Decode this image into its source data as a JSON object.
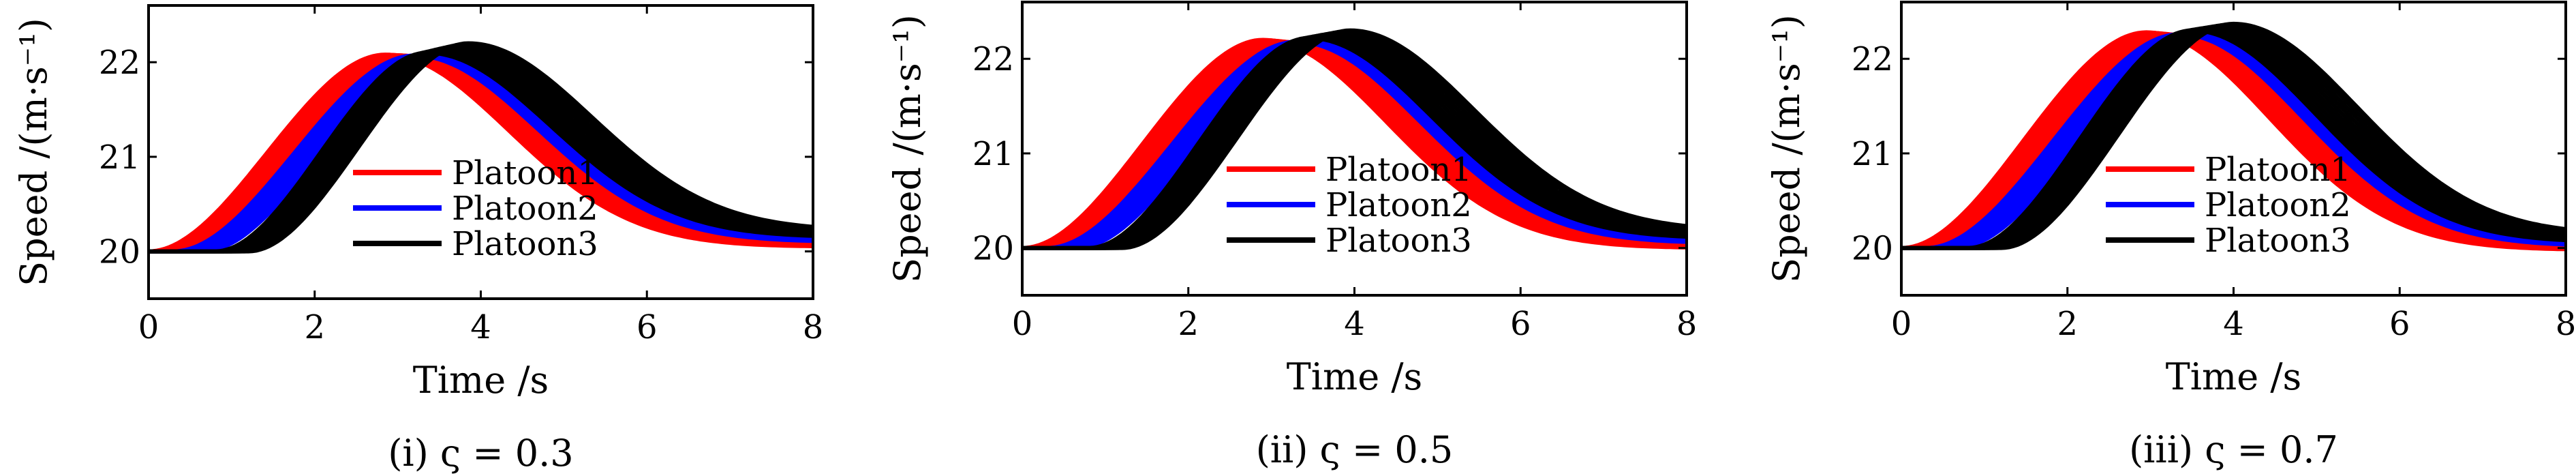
{
  "chart_data": [
    {
      "type": "line",
      "caption": "(i) ς = 0.3",
      "xlabel": "Time /s",
      "ylabel": "Speed /(m·s⁻¹)",
      "xlim": [
        0,
        8
      ],
      "ylim": [
        19.5,
        22.6
      ],
      "xticks": [
        "0",
        "2",
        "4",
        "6",
        "8"
      ],
      "yticks": [
        "20",
        "21",
        "22"
      ],
      "legend": {
        "position": "center",
        "entries": [
          "Platoon1",
          "Platoon2",
          "Platoon3"
        ]
      },
      "series": [
        {
          "name": "Platoon1",
          "color": "#ff0000",
          "vehicles": 10,
          "start_delay": [
            0.0,
            0.35
          ],
          "peak_time": [
            2.85,
            3.25
          ],
          "peak_speed": [
            22.08,
            22.06
          ],
          "end_speed": [
            20.05,
            20.1
          ]
        },
        {
          "name": "Platoon2",
          "color": "#0000ff",
          "vehicles": 10,
          "start_delay": [
            0.3,
            0.65
          ],
          "peak_time": [
            3.2,
            3.5
          ],
          "peak_speed": [
            22.07,
            22.1
          ],
          "end_speed": [
            20.1,
            20.13
          ]
        },
        {
          "name": "Platoon3",
          "color": "#000000",
          "vehicles": 10,
          "start_delay": [
            0.8,
            1.2
          ],
          "peak_time": [
            3.35,
            3.85
          ],
          "peak_speed": [
            22.1,
            22.2
          ],
          "end_speed": [
            20.15,
            20.22
          ]
        }
      ]
    },
    {
      "type": "line",
      "caption": "(ii) ς = 0.5",
      "xlabel": "Time /s",
      "ylabel": "Speed /(m·s⁻¹)",
      "xlim": [
        0,
        8
      ],
      "ylim": [
        19.5,
        22.6
      ],
      "xticks": [
        "0",
        "2",
        "4",
        "6",
        "8"
      ],
      "yticks": [
        "20",
        "21",
        "22"
      ],
      "legend": {
        "position": "center",
        "entries": [
          "Platoon1",
          "Platoon2",
          "Platoon3"
        ]
      },
      "series": [
        {
          "name": "Platoon1",
          "color": "#ff0000",
          "vehicles": 10,
          "start_delay": [
            0.0,
            0.35
          ],
          "peak_time": [
            2.9,
            3.35
          ],
          "peak_speed": [
            22.2,
            22.16
          ],
          "end_speed": [
            20.0,
            20.05
          ]
        },
        {
          "name": "Platoon2",
          "color": "#0000ff",
          "vehicles": 10,
          "start_delay": [
            0.3,
            0.65
          ],
          "peak_time": [
            3.3,
            3.6
          ],
          "peak_speed": [
            22.18,
            22.22
          ],
          "end_speed": [
            20.05,
            20.1
          ]
        },
        {
          "name": "Platoon3",
          "color": "#000000",
          "vehicles": 10,
          "start_delay": [
            0.8,
            1.2
          ],
          "peak_time": [
            3.45,
            3.95
          ],
          "peak_speed": [
            22.22,
            22.3
          ],
          "end_speed": [
            20.1,
            20.18
          ]
        }
      ]
    },
    {
      "type": "line",
      "caption": "(iii) ς = 0.7",
      "xlabel": "Time /s",
      "ylabel": "Speed /(m·s⁻¹)",
      "xlim": [
        0,
        8
      ],
      "ylim": [
        19.5,
        22.6
      ],
      "xticks": [
        "0",
        "2",
        "4",
        "6",
        "8"
      ],
      "yticks": [
        "20",
        "21",
        "22"
      ],
      "legend": {
        "position": "center",
        "entries": [
          "Platoon1",
          "Platoon2",
          "Platoon3"
        ]
      },
      "series": [
        {
          "name": "Platoon1",
          "color": "#ff0000",
          "vehicles": 10,
          "start_delay": [
            0.0,
            0.35
          ],
          "peak_time": [
            2.95,
            3.4
          ],
          "peak_speed": [
            22.28,
            22.24
          ],
          "end_speed": [
            19.98,
            20.03
          ]
        },
        {
          "name": "Platoon2",
          "color": "#0000ff",
          "vehicles": 10,
          "start_delay": [
            0.3,
            0.65
          ],
          "peak_time": [
            3.35,
            3.7
          ],
          "peak_speed": [
            22.26,
            22.3
          ],
          "end_speed": [
            20.02,
            20.08
          ]
        },
        {
          "name": "Platoon3",
          "color": "#000000",
          "vehicles": 10,
          "start_delay": [
            0.8,
            1.2
          ],
          "peak_time": [
            3.5,
            4.0
          ],
          "peak_speed": [
            22.3,
            22.37
          ],
          "end_speed": [
            20.06,
            20.14
          ]
        }
      ]
    }
  ]
}
